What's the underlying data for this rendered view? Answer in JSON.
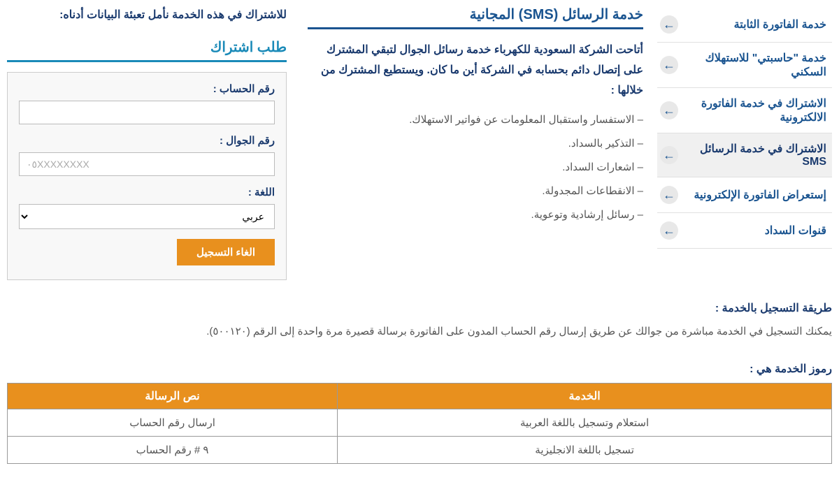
{
  "sidebar": {
    "items": [
      {
        "label": "خدمة الفاتورة الثابتة",
        "active": false
      },
      {
        "label": "خدمة \"حاسبتي\" للاستهلاك السكني",
        "active": false
      },
      {
        "label": "الاشتراك في خدمة الفاتورة الالكترونية",
        "active": false
      },
      {
        "label": "الاشتراك في خدمة الرسائل SMS",
        "active": true
      },
      {
        "label": "إستعراض الفاتورة الإلكترونية",
        "active": false
      },
      {
        "label": "قنوات السداد",
        "active": false
      }
    ]
  },
  "page": {
    "title": "خدمة الرسائل (SMS) المجانية",
    "intro": "أتاحت الشركة السعودية للكهرباء خدمة رسائل الجوال لتبقي المشترك على إتصال دائم بحسابه في الشركة أين ما كان. ويستطيع المشترك من خلالها :",
    "bullets": [
      "– الاستفسار واستقبال المعلومات عن فواتير الاستهلاك.",
      "– التذكير بالسداد.",
      "– اشعارات السداد.",
      "– الانقطاعات المجدولة.",
      "– رسائل إرشادية وتوعوية."
    ]
  },
  "form": {
    "instruction": "للاشتراك في هذه الخدمة  نأمل تعبئة البيانات أدناه:",
    "title": "طلب اشتراك",
    "account_label": "رقم الحساب :",
    "mobile_label": "رقم الجوال :",
    "mobile_placeholder": "٠٥XXXXXXXX",
    "language_label": "اللغة :",
    "language_value": "عربي",
    "submit": "الغاء التسجيل"
  },
  "registration": {
    "heading": "طريقة التسجيل بالخدمة :",
    "text": "يمكنك التسجيل في الخدمة مباشرة من جوالك عن طريق إرسال رقم الحساب المدون على الفاتورة برسالة قصيرة مرة واحدة إلى الرقم (٥٠٠١٢٠).",
    "codes_heading": "رموز الخدمة هي :"
  },
  "table": {
    "col_service": "الخدمة",
    "col_message": "نص الرسالة",
    "rows": [
      {
        "service": "استعلام وتسجيل باللغة العربية",
        "message": "ارسال رقم الحساب"
      },
      {
        "service": "تسجيل باللغة الانجليزية",
        "message": "٩ # رقم الحساب"
      }
    ]
  }
}
